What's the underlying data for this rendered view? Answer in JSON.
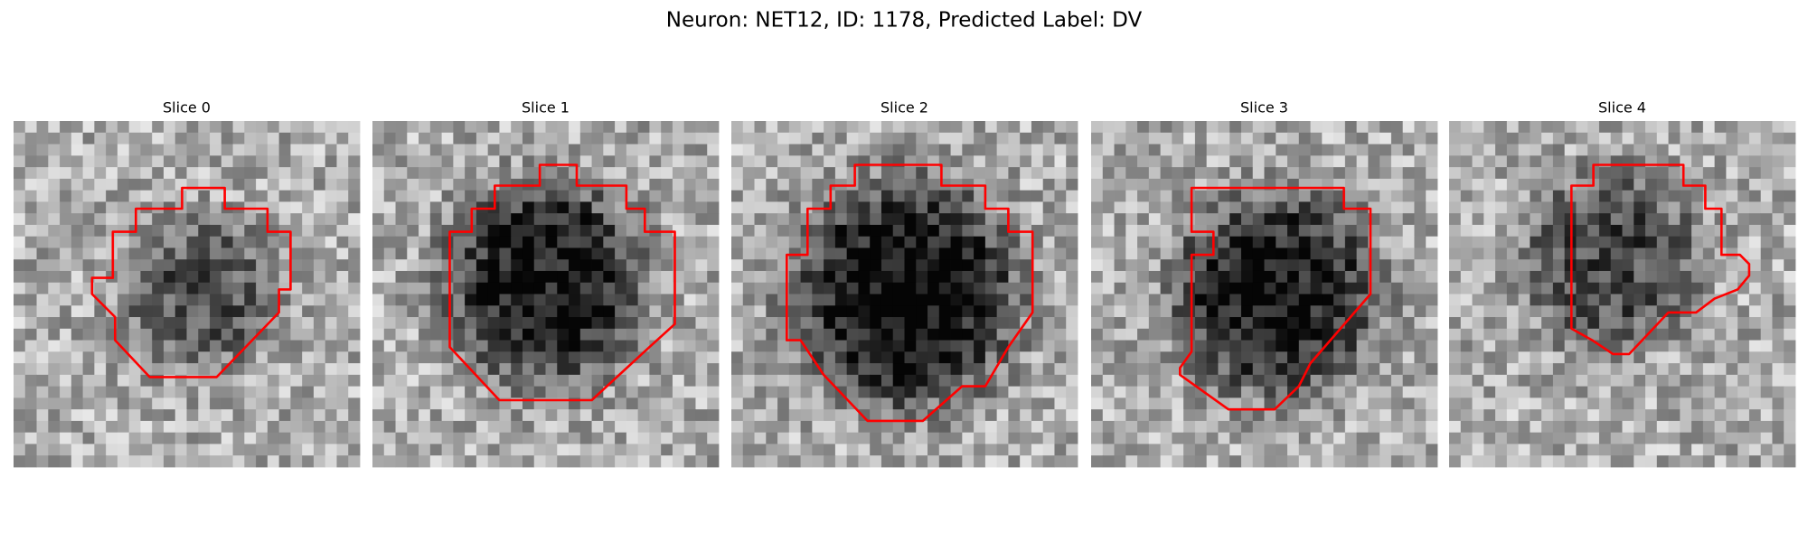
{
  "title": "Neuron: NET12, ID: 1178, Predicted Label: DV",
  "panels": [
    {
      "title": "Slice 0"
    },
    {
      "title": "Slice 1"
    },
    {
      "title": "Slice 2"
    },
    {
      "title": "Slice 3"
    },
    {
      "title": "Slice 4"
    }
  ]
}
